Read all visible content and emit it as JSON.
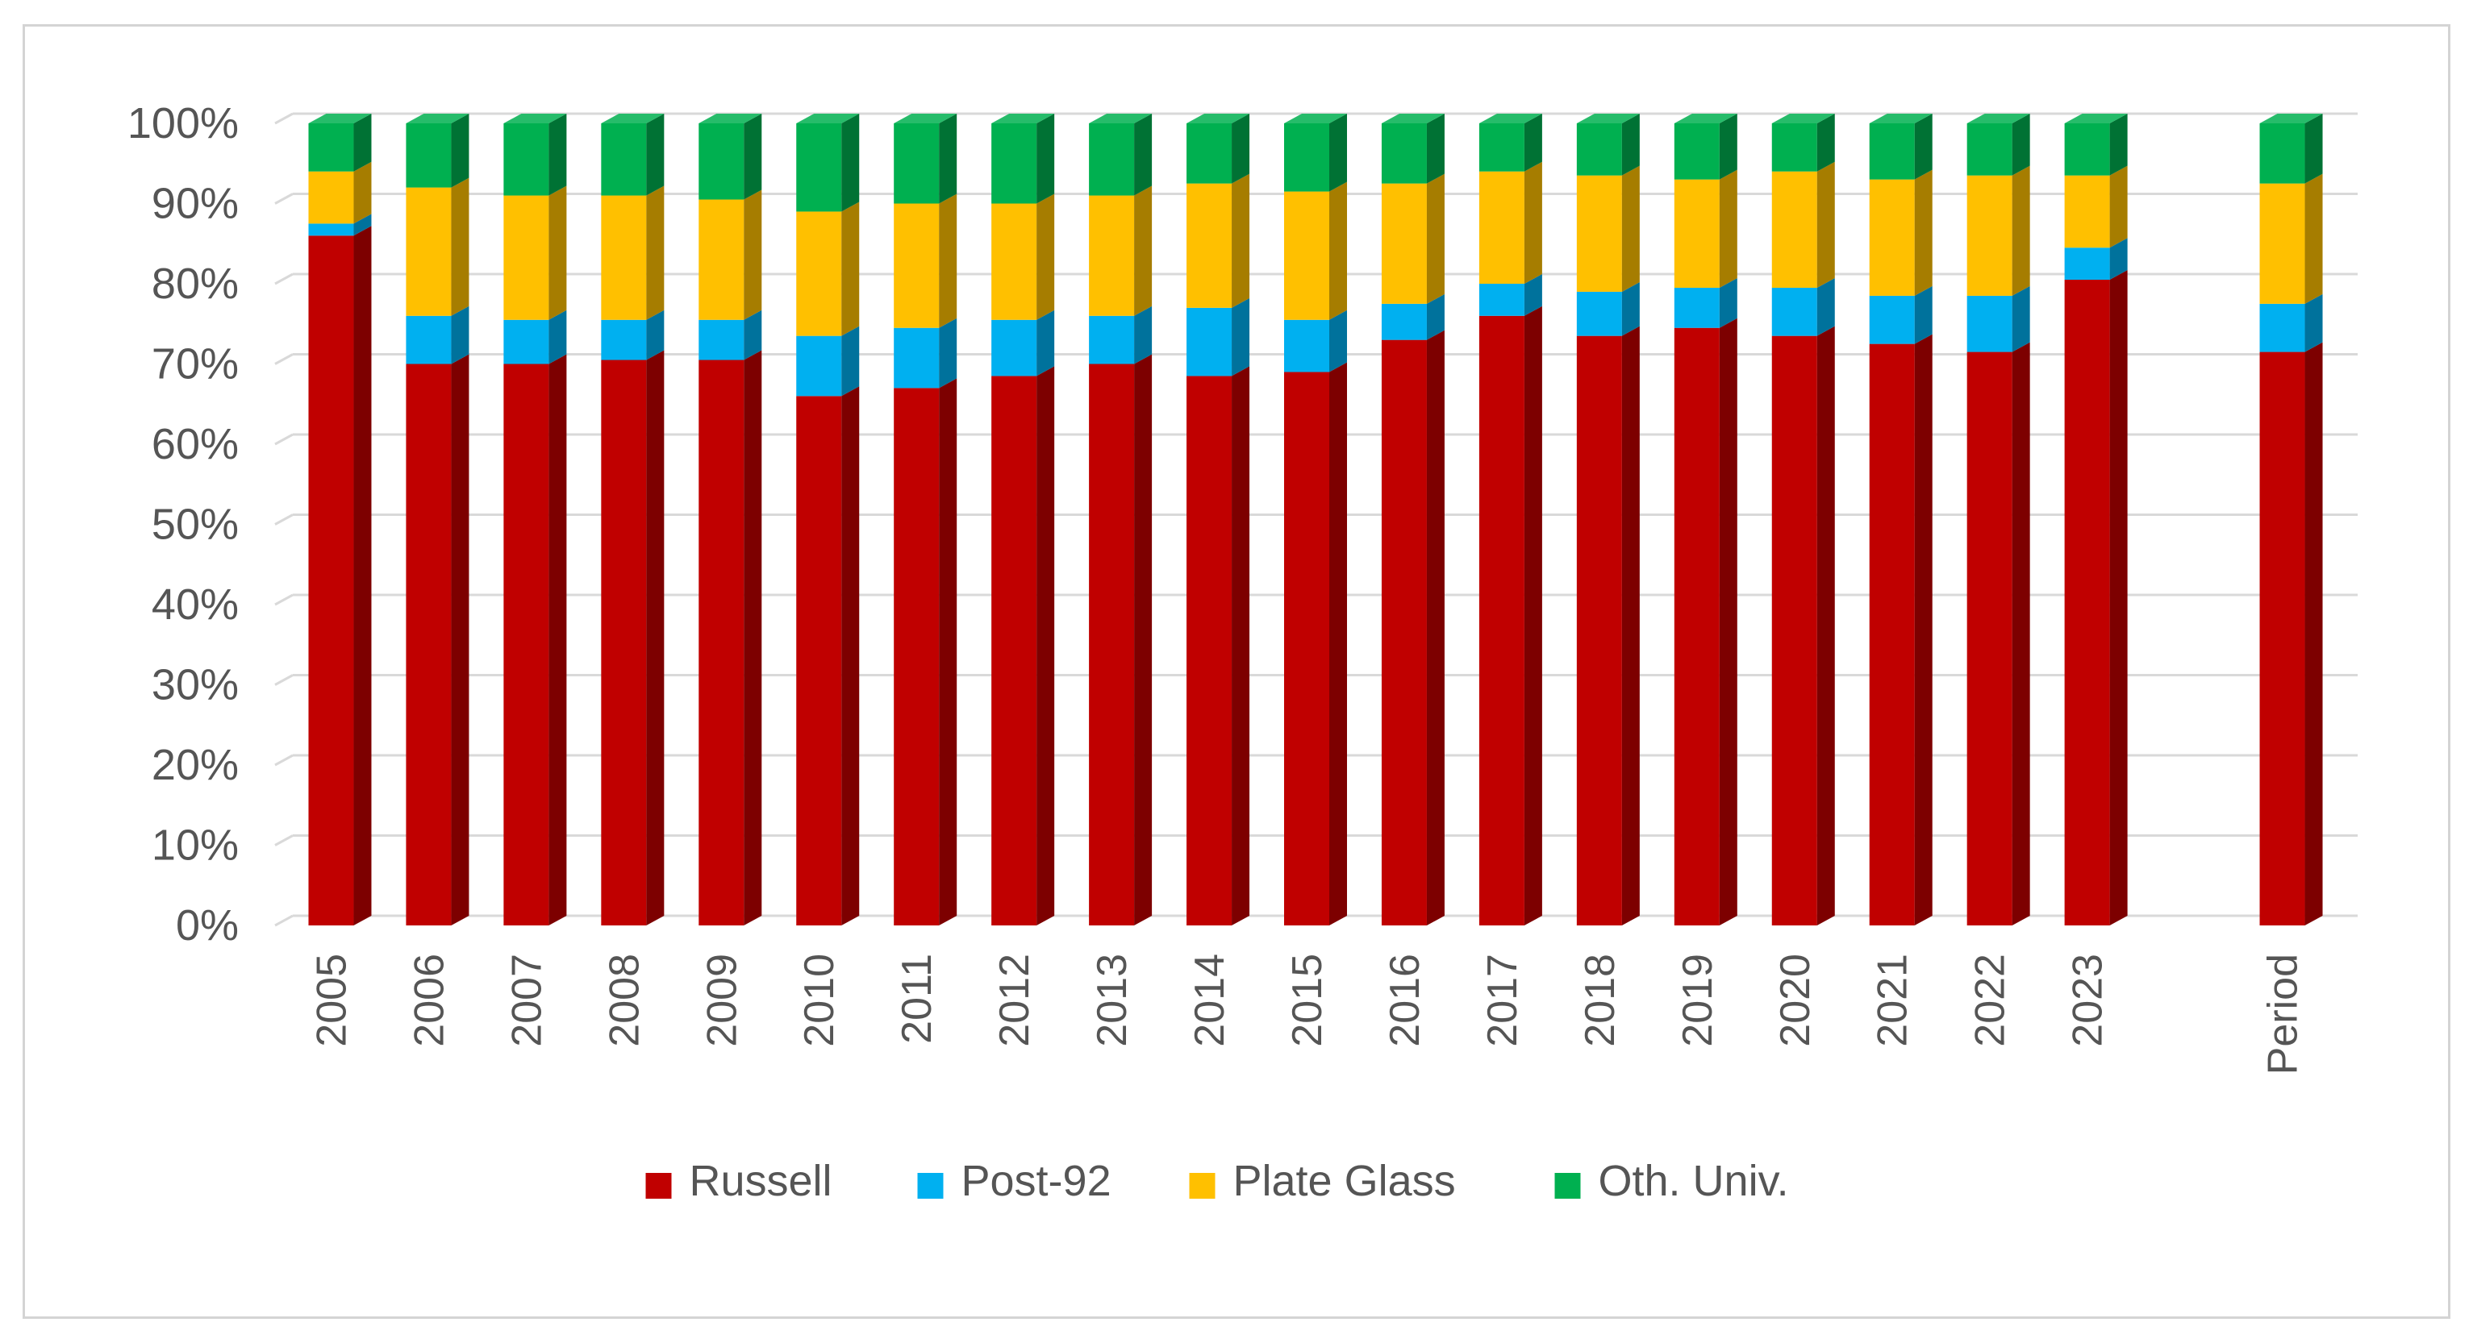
{
  "chart_data": {
    "type": "bar",
    "stacked": true,
    "percent_stacked": true,
    "style": "3d-column",
    "categories": [
      "2005",
      "2006",
      "2007",
      "2008",
      "2009",
      "2010",
      "2011",
      "2012",
      "2013",
      "2014",
      "2015",
      "2016",
      "2017",
      "2018",
      "2019",
      "2020",
      "2021",
      "2022",
      "2023",
      "",
      "Period"
    ],
    "series": [
      {
        "name": "Russell",
        "color": "#C00000",
        "values": [
          86,
          70,
          70,
          70.5,
          70.5,
          66,
          67,
          68.5,
          70,
          68.5,
          69,
          73,
          76,
          73.5,
          74.5,
          73.5,
          72.5,
          71.5,
          80.5,
          null,
          71.5
        ]
      },
      {
        "name": "Post-92",
        "color": "#00B0F0",
        "values": [
          1.5,
          6,
          5.5,
          5,
          5,
          7.5,
          7.5,
          7,
          6,
          8.5,
          6.5,
          4.5,
          4,
          5.5,
          5,
          6,
          6,
          7,
          4,
          null,
          6
        ]
      },
      {
        "name": "Plate Glass",
        "color": "#FFC000",
        "values": [
          6.5,
          16,
          15.5,
          15.5,
          15,
          15.5,
          15.5,
          14.5,
          15,
          15.5,
          16,
          15,
          14,
          14.5,
          13.5,
          14.5,
          14.5,
          15,
          9,
          null,
          15
        ]
      },
      {
        "name": "Oth. Univ.",
        "color": "#00B050",
        "values": [
          6,
          8,
          9,
          9,
          9.5,
          11,
          10,
          10,
          9,
          7.5,
          8.5,
          7.5,
          6,
          6.5,
          7,
          6,
          7,
          6.5,
          6.5,
          null,
          7.5
        ]
      }
    ],
    "title": "",
    "xlabel": "",
    "ylabel": "",
    "ylim": [
      0,
      100
    ],
    "y_ticks": [
      "0%",
      "10%",
      "20%",
      "30%",
      "40%",
      "50%",
      "60%",
      "70%",
      "80%",
      "90%",
      "100%"
    ],
    "grid": true,
    "legend_position": "bottom"
  }
}
